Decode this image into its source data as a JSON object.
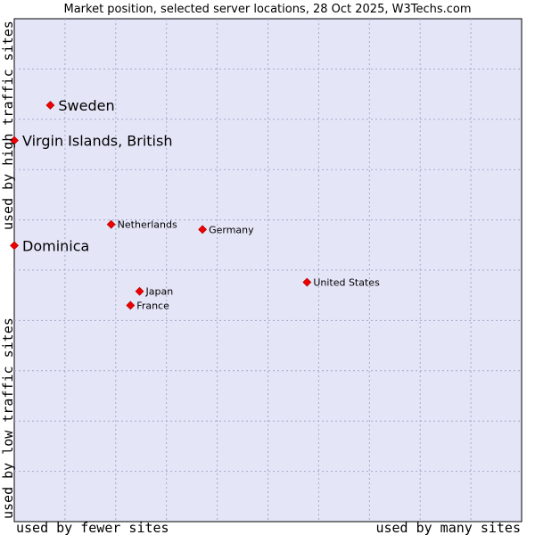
{
  "chart_data": {
    "type": "scatter",
    "title": "Market position, selected server locations, 28 Oct 2025, W3Techs.com",
    "xlabel_left": "used by fewer sites",
    "xlabel_right": "used by many sites",
    "ylabel_top": "used by high traffic sites",
    "ylabel_bottom": "used by low traffic sites",
    "xlim": [
      0,
      100
    ],
    "ylim": [
      0,
      100
    ],
    "grid": true,
    "colors": {
      "plot_background": "#e4e6f8",
      "grid": "#a5a7c7",
      "marker": "#ee0000",
      "text": "#000000"
    },
    "points": [
      {
        "label": "Sweden",
        "x": 7.1,
        "y": 82.8,
        "emphasis": true
      },
      {
        "label": "Virgin Islands, British",
        "x": 0.0,
        "y": 75.8,
        "emphasis": true
      },
      {
        "label": "Netherlands",
        "x": 19.1,
        "y": 59.1,
        "emphasis": false
      },
      {
        "label": "Germany",
        "x": 37.1,
        "y": 58.1,
        "emphasis": false
      },
      {
        "label": "Dominica",
        "x": 0.0,
        "y": 54.9,
        "emphasis": true
      },
      {
        "label": "United States",
        "x": 57.7,
        "y": 47.6,
        "emphasis": false
      },
      {
        "label": "Japan",
        "x": 24.7,
        "y": 45.8,
        "emphasis": false
      },
      {
        "label": "France",
        "x": 22.9,
        "y": 43.0,
        "emphasis": false
      }
    ]
  }
}
